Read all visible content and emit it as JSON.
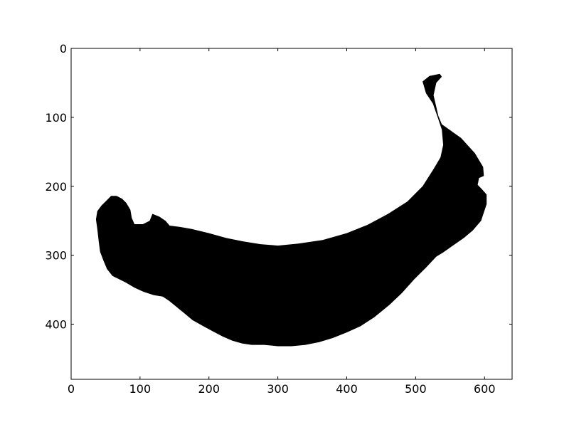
{
  "chart_data": {
    "type": "heatmap",
    "title": "",
    "xlabel": "",
    "ylabel": "",
    "xlim": [
      0,
      640
    ],
    "ylim": [
      480,
      0
    ],
    "y_inverted": true,
    "grid": false,
    "x_ticks": [
      0,
      100,
      200,
      300,
      400,
      500,
      600
    ],
    "y_ticks": [
      0,
      100,
      200,
      300,
      400
    ],
    "colors": {
      "mask": "#000000",
      "background": "#ffffff",
      "axes": "#000000"
    },
    "mask_outline": [
      [
        510,
        48
      ],
      [
        520,
        40
      ],
      [
        535,
        37
      ],
      [
        538,
        41
      ],
      [
        530,
        50
      ],
      [
        526,
        68
      ],
      [
        530,
        85
      ],
      [
        533,
        98
      ],
      [
        538,
        110
      ],
      [
        552,
        120
      ],
      [
        566,
        130
      ],
      [
        586,
        152
      ],
      [
        598,
        172
      ],
      [
        599,
        185
      ],
      [
        592,
        188
      ],
      [
        590,
        198
      ],
      [
        596,
        204
      ],
      [
        603,
        212
      ],
      [
        603,
        226
      ],
      [
        595,
        250
      ],
      [
        583,
        264
      ],
      [
        570,
        275
      ],
      [
        557,
        284
      ],
      [
        540,
        296
      ],
      [
        530,
        302
      ],
      [
        515,
        318
      ],
      [
        498,
        335
      ],
      [
        480,
        355
      ],
      [
        462,
        372
      ],
      [
        440,
        390
      ],
      [
        420,
        403
      ],
      [
        400,
        412
      ],
      [
        380,
        420
      ],
      [
        360,
        426
      ],
      [
        340,
        430
      ],
      [
        320,
        432
      ],
      [
        300,
        432
      ],
      [
        280,
        430
      ],
      [
        262,
        430
      ],
      [
        248,
        428
      ],
      [
        234,
        424
      ],
      [
        220,
        418
      ],
      [
        205,
        410
      ],
      [
        190,
        402
      ],
      [
        176,
        394
      ],
      [
        164,
        384
      ],
      [
        153,
        375
      ],
      [
        142,
        366
      ],
      [
        133,
        360
      ],
      [
        120,
        358
      ],
      [
        105,
        353
      ],
      [
        92,
        347
      ],
      [
        80,
        340
      ],
      [
        70,
        335
      ],
      [
        60,
        330
      ],
      [
        52,
        320
      ],
      [
        47,
        308
      ],
      [
        42,
        295
      ],
      [
        40,
        280
      ],
      [
        38,
        262
      ],
      [
        36,
        248
      ],
      [
        38,
        236
      ],
      [
        44,
        228
      ],
      [
        52,
        220
      ],
      [
        58,
        214
      ],
      [
        66,
        214
      ],
      [
        74,
        218
      ],
      [
        80,
        224
      ],
      [
        86,
        234
      ],
      [
        88,
        246
      ],
      [
        92,
        255
      ],
      [
        104,
        255
      ],
      [
        114,
        250
      ],
      [
        118,
        240
      ],
      [
        128,
        244
      ],
      [
        137,
        250
      ],
      [
        143,
        257
      ],
      [
        158,
        259
      ],
      [
        175,
        262
      ],
      [
        200,
        268
      ],
      [
        225,
        275
      ],
      [
        250,
        280
      ],
      [
        275,
        284
      ],
      [
        300,
        286
      ],
      [
        330,
        283
      ],
      [
        365,
        278
      ],
      [
        400,
        268
      ],
      [
        430,
        256
      ],
      [
        460,
        240
      ],
      [
        488,
        222
      ],
      [
        510,
        200
      ],
      [
        526,
        175
      ],
      [
        536,
        158
      ],
      [
        540,
        140
      ],
      [
        538,
        118
      ],
      [
        532,
        100
      ],
      [
        525,
        80
      ],
      [
        515,
        65
      ]
    ]
  }
}
